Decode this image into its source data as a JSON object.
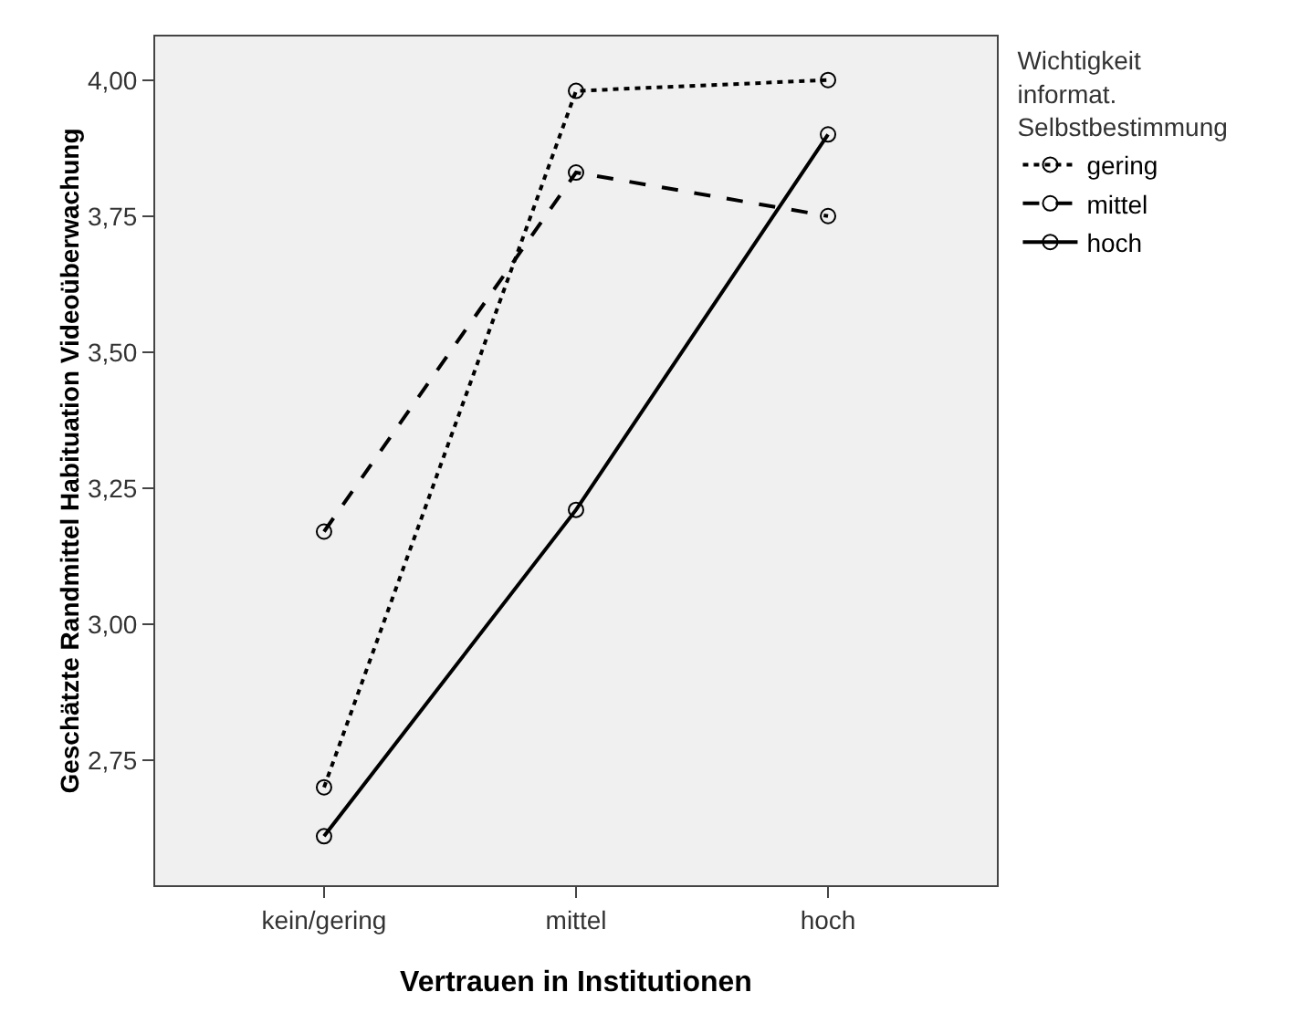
{
  "chart_data": {
    "type": "line",
    "xlabel": "Vertrauen in Institutionen",
    "ylabel": "Geschätzte Randmittel Habituation Videoüberwachung",
    "legend_title": "Wichtigkeit\ninformat.\nSelbstbestimmung",
    "categories": [
      "kein/gering",
      "mittel",
      "hoch"
    ],
    "series": [
      {
        "name": "gering",
        "color": "#000000",
        "line_style": "dotted",
        "values": [
          2.7,
          3.98,
          4.0
        ]
      },
      {
        "name": "mittel",
        "color": "#000000",
        "line_style": "dashed",
        "values": [
          3.17,
          3.83,
          3.75
        ]
      },
      {
        "name": "hoch",
        "color": "#000000",
        "line_style": "solid",
        "values": [
          2.61,
          3.21,
          3.9
        ]
      }
    ],
    "ylim": [
      2.52,
      4.08
    ],
    "yticks": [
      {
        "value": 2.75,
        "label": "2,75"
      },
      {
        "value": 3,
        "label": "3,00"
      },
      {
        "value": 3.25,
        "label": "3,25"
      },
      {
        "value": 3.5,
        "label": "3,50"
      },
      {
        "value": 3.75,
        "label": "3,75"
      },
      {
        "value": 4,
        "label": "4,00"
      }
    ],
    "grid": false,
    "legend": "top right",
    "marker": "circle"
  }
}
